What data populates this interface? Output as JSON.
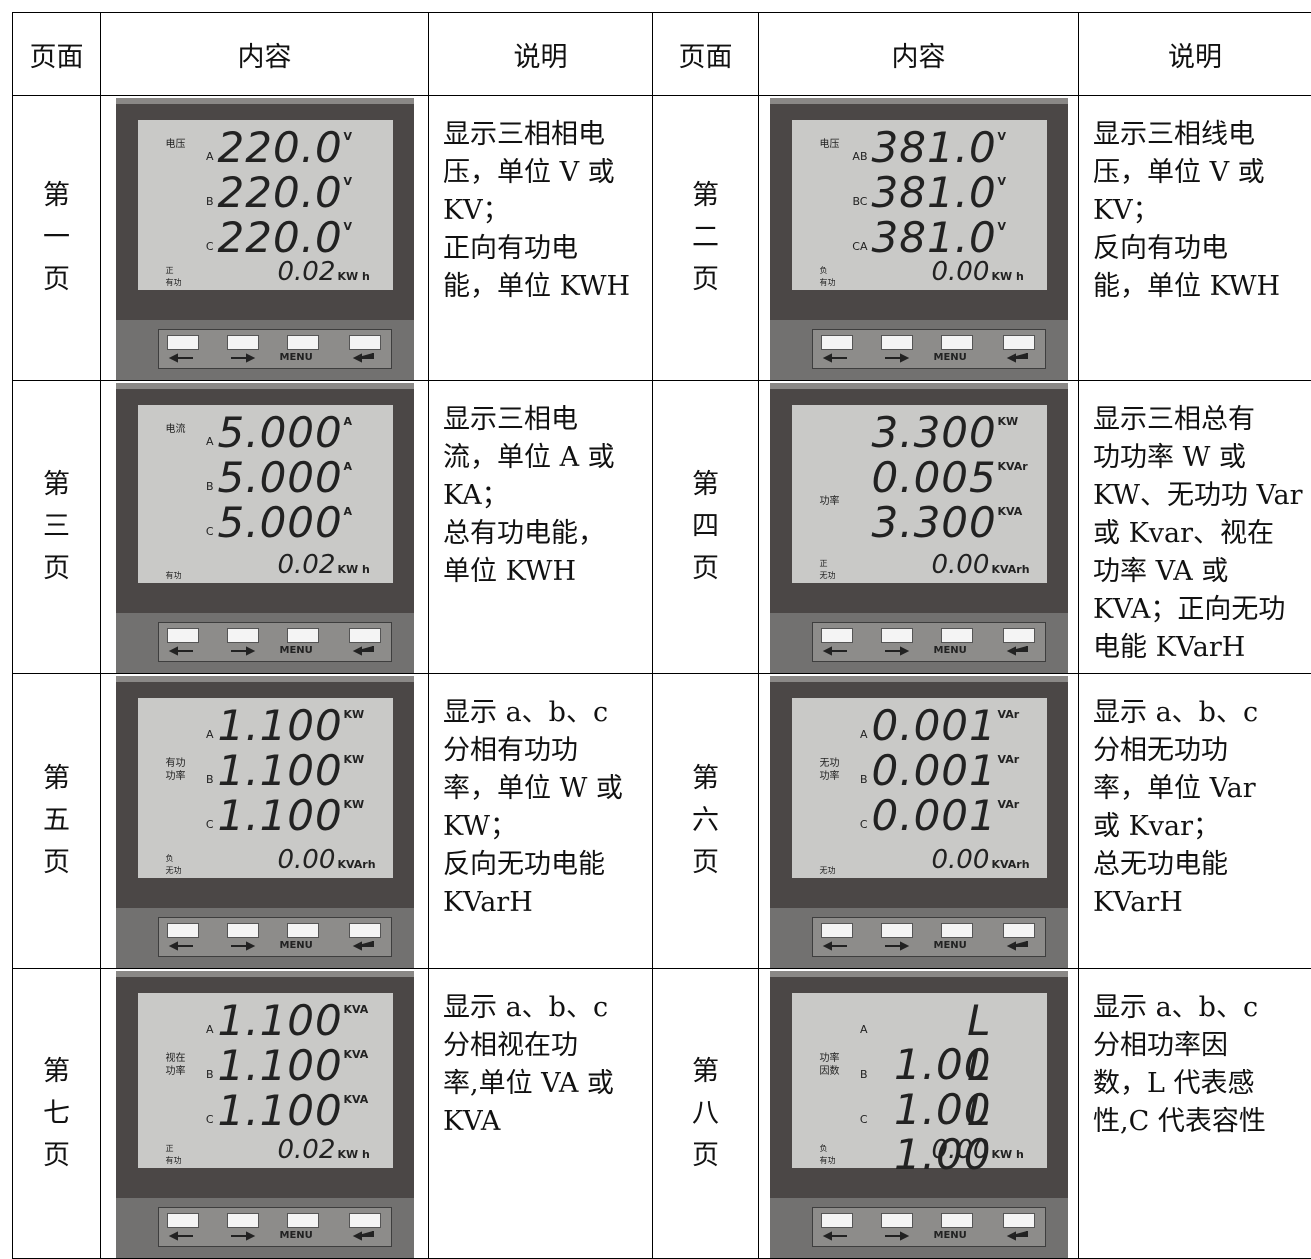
{
  "table": {
    "header": [
      "页面",
      "内容",
      "说明",
      "页面",
      "内容",
      "说明"
    ],
    "button_label": "MENU",
    "pages": [
      {
        "name": "第一页",
        "desc": [
          "显示三相相电",
          "压，单位 V 或",
          "KV；",
          "正向有功电",
          "能，单位 KWH"
        ],
        "lcd": {
          "labels": [
            "电压"
          ],
          "rows": [
            {
              "phase": "A",
              "value": "220.0",
              "unit": "V"
            },
            {
              "phase": "B",
              "value": "220.0",
              "unit": "V"
            },
            {
              "phase": "C",
              "value": "220.0",
              "unit": "V"
            }
          ],
          "energy_labels": [
            "正",
            "有功"
          ],
          "energy_value": "0.02",
          "energy_unit": "KW h"
        }
      },
      {
        "name": "第二页",
        "desc": [
          "显示三相线电",
          "压，单位 V 或",
          "KV；",
          "反向有功电",
          "能，单位 KWH"
        ],
        "lcd": {
          "labels": [
            "电压"
          ],
          "rows": [
            {
              "phase": "AB",
              "value": "381.0",
              "unit": "V"
            },
            {
              "phase": "BC",
              "value": "381.0",
              "unit": "V"
            },
            {
              "phase": "CA",
              "value": "381.0",
              "unit": "V"
            }
          ],
          "energy_labels": [
            "负",
            "有功"
          ],
          "energy_value": "0.00",
          "energy_unit": "KW h"
        }
      },
      {
        "name": "第三页",
        "desc": [
          "显示三相电",
          "流，单位 A 或",
          "KA；",
          "总有功电能，",
          "单位 KWH"
        ],
        "lcd": {
          "labels": [
            "电流"
          ],
          "rows": [
            {
              "phase": "A",
              "value": "5.000",
              "unit": "A"
            },
            {
              "phase": "B",
              "value": "5.000",
              "unit": "A"
            },
            {
              "phase": "C",
              "value": "5.000",
              "unit": "A"
            }
          ],
          "energy_labels": [
            "有功"
          ],
          "energy_value": "0.02",
          "energy_unit": "KW h"
        }
      },
      {
        "name": "第四页",
        "desc": [
          "显示三相总有",
          "功功率 W 或",
          "KW、无功功 Var",
          "或 Kvar、视在",
          "功率 VA 或",
          "KVA；正向无功",
          "电能 KVarH"
        ],
        "lcd": {
          "labels": [
            "功率"
          ],
          "rows": [
            {
              "value": "3.300",
              "unit": "KW"
            },
            {
              "value": "0.005",
              "unit": "KVAr"
            },
            {
              "value": "3.300",
              "unit": "KVA"
            }
          ],
          "energy_labels": [
            "正",
            "无功"
          ],
          "energy_value": "0.00",
          "energy_unit": "KVArh"
        }
      },
      {
        "name": "第五页",
        "desc": [
          "显示 a、b、c",
          "分相有功功",
          "率，单位 W 或",
          "KW；",
          "反向无功电能",
          "KVarH"
        ],
        "lcd": {
          "labels": [
            "有功",
            "功率"
          ],
          "rows": [
            {
              "phase": "A",
              "value": "1.100",
              "unit": "KW"
            },
            {
              "phase": "B",
              "value": "1.100",
              "unit": "KW"
            },
            {
              "phase": "C",
              "value": "1.100",
              "unit": "KW"
            }
          ],
          "energy_labels": [
            "负",
            "无功"
          ],
          "energy_value": "0.00",
          "energy_unit": "KVArh"
        }
      },
      {
        "name": "第六页",
        "desc": [
          "显示 a、b、c",
          "分相无功功",
          "率，单位 Var",
          "或 Kvar；",
          "总无功电能",
          "KVarH"
        ],
        "lcd": {
          "labels": [
            "无功",
            "功率"
          ],
          "rows": [
            {
              "phase": "A",
              "value": "0.001",
              "unit": "VAr"
            },
            {
              "phase": "B",
              "value": "0.001",
              "unit": "VAr"
            },
            {
              "phase": "C",
              "value": "0.001",
              "unit": "VAr"
            }
          ],
          "energy_labels": [
            "无功"
          ],
          "energy_value": "0.00",
          "energy_unit": "KVArh"
        }
      },
      {
        "name": "第七页",
        "desc": [
          "显示 a、b、c",
          "分相视在功",
          "率,单位 VA 或",
          "KVA"
        ],
        "lcd": {
          "labels": [
            "视在",
            "功率"
          ],
          "rows": [
            {
              "phase": "A",
              "value": "1.100",
              "unit": "KVA"
            },
            {
              "phase": "B",
              "value": "1.100",
              "unit": "KVA"
            },
            {
              "phase": "C",
              "value": "1.100",
              "unit": "KVA"
            }
          ],
          "energy_labels": [
            "正",
            "有功"
          ],
          "energy_value": "0.02",
          "energy_unit": "KW h"
        }
      },
      {
        "name": "第八页",
        "desc": [
          "显示 a、b、c",
          "分相功率因",
          "数，L 代表感",
          "性,C 代表容性"
        ],
        "lcd": {
          "labels": [
            "功率",
            "因数"
          ],
          "rows": [
            {
              "phase": "A",
              "value": "L 1.00"
            },
            {
              "phase": "B",
              "value": "L 1.00"
            },
            {
              "phase": "C",
              "value": "L 1.00"
            }
          ],
          "energy_labels": [
            "负",
            "有功"
          ],
          "energy_value": "0.00",
          "energy_unit": "KW h"
        }
      }
    ]
  }
}
